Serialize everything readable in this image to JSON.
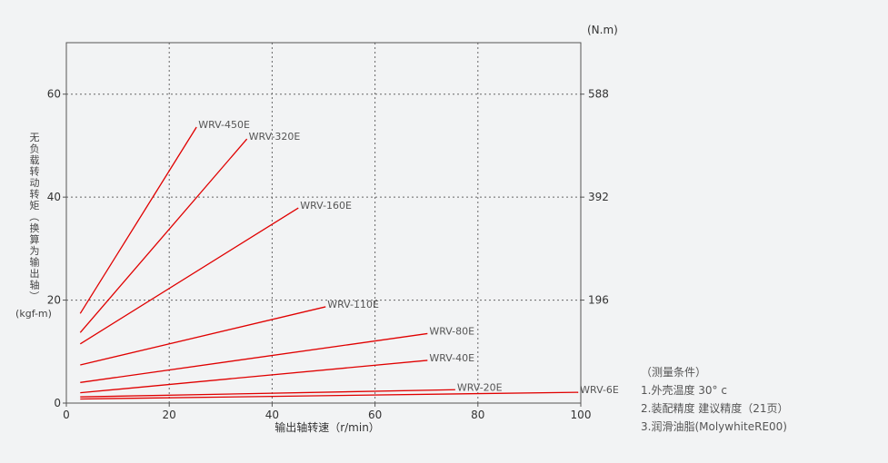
{
  "chart_data": {
    "type": "line",
    "xlabel": "输出轴转速（r/min）",
    "ylabel_left": "无负载转动转矩（换算为输出轴）",
    "ylabel_unit": "(kgf-m)",
    "y2_unit": "(N.m)",
    "xlim": [
      0,
      100
    ],
    "ylim": [
      0,
      70
    ],
    "x_ticks": [
      0,
      20,
      40,
      60,
      80,
      100
    ],
    "y_ticks": [
      0,
      20,
      40,
      60
    ],
    "y2_ticks": [
      {
        "value": 20,
        "label": "196"
      },
      {
        "value": 40,
        "label": "392"
      },
      {
        "value": 60,
        "label": "588"
      }
    ],
    "grid": true,
    "series": [
      {
        "name": "WRV-450E",
        "x": [
          2.7,
          25.3
        ],
        "y": [
          17.4,
          53.6
        ]
      },
      {
        "name": "WRV-320E",
        "x": [
          2.7,
          35.1
        ],
        "y": [
          13.7,
          51.3
        ]
      },
      {
        "name": "WRV-160E",
        "x": [
          2.7,
          45.1
        ],
        "y": [
          11.5,
          37.9
        ]
      },
      {
        "name": "WRV-110E",
        "x": [
          2.7,
          50.4
        ],
        "y": [
          7.4,
          18.7
        ]
      },
      {
        "name": "WRV-80E",
        "x": [
          2.7,
          70.2
        ],
        "y": [
          4.0,
          13.5
        ]
      },
      {
        "name": "WRV-40E",
        "x": [
          2.7,
          70.2
        ],
        "y": [
          2.0,
          8.3
        ]
      },
      {
        "name": "WRV-20E",
        "x": [
          2.7,
          75.6
        ],
        "y": [
          1.2,
          2.6
        ]
      },
      {
        "name": "WRV-6E",
        "x": [
          2.7,
          99.5
        ],
        "y": [
          0.8,
          2.1
        ]
      }
    ],
    "line_color": "#e00000"
  },
  "notes": {
    "title": "（测量条件）",
    "items": [
      "1.外壳温度  30°  c",
      "2.装配精度   建议精度（21页）",
      "3.润滑油脂(MolywhiteRE00)"
    ]
  }
}
